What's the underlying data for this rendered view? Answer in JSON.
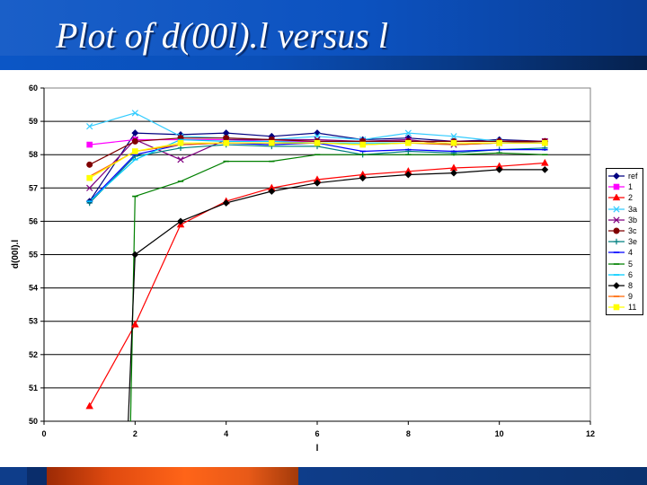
{
  "slide": {
    "title": "Plot of d(00l).l versus l"
  },
  "chart_data": {
    "type": "line",
    "xlabel": "l",
    "ylabel": "d(00l).l",
    "xlim": [
      0,
      12
    ],
    "ylim": [
      50,
      60
    ],
    "xticks": [
      0,
      2,
      4,
      6,
      8,
      10,
      12
    ],
    "yticks": [
      50,
      51,
      52,
      53,
      54,
      55,
      56,
      57,
      58,
      59,
      60
    ],
    "grid": "horizontal",
    "legend_position": "right",
    "series": [
      {
        "name": "ref",
        "color": "#000080",
        "marker": "diamond",
        "x": [
          1,
          2,
          3,
          4,
          5,
          6,
          7,
          8,
          9,
          10,
          11
        ],
        "y": [
          56.6,
          58.65,
          58.6,
          58.65,
          58.55,
          58.65,
          58.45,
          58.5,
          58.4,
          58.45,
          58.4
        ]
      },
      {
        "name": "1",
        "color": "#ff00ff",
        "marker": "square",
        "x": [
          1,
          2,
          3,
          4,
          5,
          6,
          7,
          8,
          9,
          10,
          11
        ],
        "y": [
          58.3,
          58.45,
          58.45,
          58.45,
          58.4,
          58.4,
          58.4,
          58.4,
          58.4,
          58.4,
          58.4
        ]
      },
      {
        "name": "2",
        "color": "#ff0000",
        "marker": "triangle",
        "x": [
          1,
          2,
          3,
          4,
          5,
          6,
          7,
          8,
          9,
          10,
          11
        ],
        "y": [
          50.45,
          52.9,
          55.9,
          56.6,
          57.0,
          57.25,
          57.4,
          57.5,
          57.6,
          57.65,
          57.75
        ]
      },
      {
        "name": "3a",
        "color": "#33ccff",
        "marker": "x",
        "x": [
          1,
          2,
          3,
          4,
          5,
          6,
          7,
          8,
          9,
          10,
          11
        ],
        "y": [
          58.85,
          59.25,
          58.55,
          58.5,
          58.45,
          58.55,
          58.45,
          58.65,
          58.55,
          58.4,
          58.35
        ]
      },
      {
        "name": "3b",
        "color": "#800080",
        "marker": "x",
        "x": [
          1,
          2,
          3,
          4,
          5,
          6,
          7,
          8,
          9,
          10,
          11
        ],
        "y": [
          57.0,
          58.45,
          57.85,
          58.45,
          58.45,
          58.45,
          58.4,
          58.45,
          58.3,
          58.35,
          58.4
        ]
      },
      {
        "name": "3c",
        "color": "#800000",
        "marker": "circle",
        "x": [
          1,
          2,
          3,
          4,
          5,
          6,
          7,
          8,
          9,
          10,
          11
        ],
        "y": [
          57.7,
          58.4,
          58.5,
          58.5,
          58.45,
          58.4,
          58.4,
          58.4,
          58.4,
          58.4,
          58.4
        ]
      },
      {
        "name": "3e",
        "color": "#008080",
        "marker": "plus",
        "x": [
          1,
          2,
          3,
          4,
          5,
          6,
          7,
          8,
          9,
          10,
          11
        ],
        "y": [
          56.55,
          57.95,
          58.2,
          58.3,
          58.25,
          58.25,
          58.0,
          58.1,
          58.05,
          58.15,
          58.2
        ]
      },
      {
        "name": "4",
        "color": "#0000ff",
        "marker": "dash",
        "x": [
          1,
          2,
          3,
          4,
          5,
          6,
          7,
          8,
          9,
          10,
          11
        ],
        "y": [
          56.6,
          58.0,
          58.3,
          58.35,
          58.3,
          58.35,
          58.1,
          58.15,
          58.1,
          58.15,
          58.15
        ]
      },
      {
        "name": "5",
        "color": "#008000",
        "marker": "dash",
        "x": [
          1.9,
          2,
          3,
          4,
          5,
          6,
          7,
          8,
          9,
          10,
          11
        ],
        "y": [
          50.0,
          56.75,
          57.2,
          57.8,
          57.8,
          58.0,
          58.0,
          58.0,
          58.0,
          58.05,
          58.0
        ]
      },
      {
        "name": "6",
        "color": "#00ccff",
        "marker": "dash",
        "x": [
          1,
          2,
          3,
          4,
          5,
          6,
          7,
          8,
          9,
          10,
          11
        ],
        "y": [
          56.6,
          57.85,
          58.45,
          58.4,
          58.4,
          58.35,
          58.35,
          58.35,
          58.3,
          58.35,
          58.35
        ]
      },
      {
        "name": "8",
        "color": "#000000",
        "marker": "diamond",
        "x": [
          1.85,
          2,
          3,
          4,
          5,
          6,
          7,
          8,
          9,
          10,
          11
        ],
        "y": [
          50.0,
          55.0,
          56.0,
          56.55,
          56.9,
          57.15,
          57.3,
          57.4,
          57.45,
          57.55,
          57.55
        ]
      },
      {
        "name": "9",
        "color": "#ff6600",
        "marker": "dash",
        "x": [
          1,
          2,
          3,
          4,
          5,
          6,
          7,
          8,
          9,
          10,
          11
        ],
        "y": [
          57.35,
          58.1,
          58.3,
          58.35,
          58.35,
          58.35,
          58.3,
          58.35,
          58.3,
          58.35,
          58.35
        ]
      },
      {
        "name": "11",
        "color": "#ffff00",
        "marker": "square",
        "x": [
          1,
          2,
          3,
          4,
          5,
          6,
          7,
          8,
          9,
          10,
          11
        ],
        "y": [
          57.3,
          58.1,
          58.35,
          58.35,
          58.35,
          58.35,
          58.3,
          58.35,
          58.35,
          58.35,
          58.35
        ]
      }
    ]
  }
}
